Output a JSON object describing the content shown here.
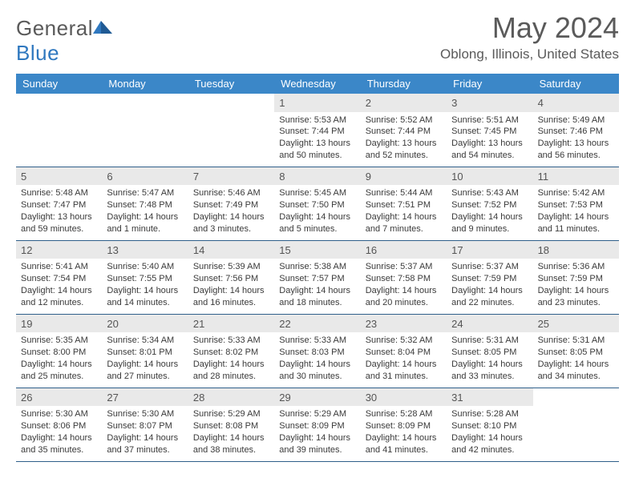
{
  "brand": {
    "name_a": "General",
    "name_b": "Blue"
  },
  "title": "May 2024",
  "location": "Oblong, Illinois, United States",
  "colors": {
    "header_bg": "#3b87c8",
    "header_text": "#ffffff",
    "daynum_bg": "#e9e9e9",
    "border": "#2f5f8a",
    "text": "#3a3a3a",
    "title_text": "#5a5a5a"
  },
  "weekdays": [
    "Sunday",
    "Monday",
    "Tuesday",
    "Wednesday",
    "Thursday",
    "Friday",
    "Saturday"
  ],
  "weeks": [
    [
      null,
      null,
      null,
      {
        "n": "1",
        "sr": "5:53 AM",
        "ss": "7:44 PM",
        "dl": "13 hours and 50 minutes."
      },
      {
        "n": "2",
        "sr": "5:52 AM",
        "ss": "7:44 PM",
        "dl": "13 hours and 52 minutes."
      },
      {
        "n": "3",
        "sr": "5:51 AM",
        "ss": "7:45 PM",
        "dl": "13 hours and 54 minutes."
      },
      {
        "n": "4",
        "sr": "5:49 AM",
        "ss": "7:46 PM",
        "dl": "13 hours and 56 minutes."
      }
    ],
    [
      {
        "n": "5",
        "sr": "5:48 AM",
        "ss": "7:47 PM",
        "dl": "13 hours and 59 minutes."
      },
      {
        "n": "6",
        "sr": "5:47 AM",
        "ss": "7:48 PM",
        "dl": "14 hours and 1 minute."
      },
      {
        "n": "7",
        "sr": "5:46 AM",
        "ss": "7:49 PM",
        "dl": "14 hours and 3 minutes."
      },
      {
        "n": "8",
        "sr": "5:45 AM",
        "ss": "7:50 PM",
        "dl": "14 hours and 5 minutes."
      },
      {
        "n": "9",
        "sr": "5:44 AM",
        "ss": "7:51 PM",
        "dl": "14 hours and 7 minutes."
      },
      {
        "n": "10",
        "sr": "5:43 AM",
        "ss": "7:52 PM",
        "dl": "14 hours and 9 minutes."
      },
      {
        "n": "11",
        "sr": "5:42 AM",
        "ss": "7:53 PM",
        "dl": "14 hours and 11 minutes."
      }
    ],
    [
      {
        "n": "12",
        "sr": "5:41 AM",
        "ss": "7:54 PM",
        "dl": "14 hours and 12 minutes."
      },
      {
        "n": "13",
        "sr": "5:40 AM",
        "ss": "7:55 PM",
        "dl": "14 hours and 14 minutes."
      },
      {
        "n": "14",
        "sr": "5:39 AM",
        "ss": "7:56 PM",
        "dl": "14 hours and 16 minutes."
      },
      {
        "n": "15",
        "sr": "5:38 AM",
        "ss": "7:57 PM",
        "dl": "14 hours and 18 minutes."
      },
      {
        "n": "16",
        "sr": "5:37 AM",
        "ss": "7:58 PM",
        "dl": "14 hours and 20 minutes."
      },
      {
        "n": "17",
        "sr": "5:37 AM",
        "ss": "7:59 PM",
        "dl": "14 hours and 22 minutes."
      },
      {
        "n": "18",
        "sr": "5:36 AM",
        "ss": "7:59 PM",
        "dl": "14 hours and 23 minutes."
      }
    ],
    [
      {
        "n": "19",
        "sr": "5:35 AM",
        "ss": "8:00 PM",
        "dl": "14 hours and 25 minutes."
      },
      {
        "n": "20",
        "sr": "5:34 AM",
        "ss": "8:01 PM",
        "dl": "14 hours and 27 minutes."
      },
      {
        "n": "21",
        "sr": "5:33 AM",
        "ss": "8:02 PM",
        "dl": "14 hours and 28 minutes."
      },
      {
        "n": "22",
        "sr": "5:33 AM",
        "ss": "8:03 PM",
        "dl": "14 hours and 30 minutes."
      },
      {
        "n": "23",
        "sr": "5:32 AM",
        "ss": "8:04 PM",
        "dl": "14 hours and 31 minutes."
      },
      {
        "n": "24",
        "sr": "5:31 AM",
        "ss": "8:05 PM",
        "dl": "14 hours and 33 minutes."
      },
      {
        "n": "25",
        "sr": "5:31 AM",
        "ss": "8:05 PM",
        "dl": "14 hours and 34 minutes."
      }
    ],
    [
      {
        "n": "26",
        "sr": "5:30 AM",
        "ss": "8:06 PM",
        "dl": "14 hours and 35 minutes."
      },
      {
        "n": "27",
        "sr": "5:30 AM",
        "ss": "8:07 PM",
        "dl": "14 hours and 37 minutes."
      },
      {
        "n": "28",
        "sr": "5:29 AM",
        "ss": "8:08 PM",
        "dl": "14 hours and 38 minutes."
      },
      {
        "n": "29",
        "sr": "5:29 AM",
        "ss": "8:09 PM",
        "dl": "14 hours and 39 minutes."
      },
      {
        "n": "30",
        "sr": "5:28 AM",
        "ss": "8:09 PM",
        "dl": "14 hours and 41 minutes."
      },
      {
        "n": "31",
        "sr": "5:28 AM",
        "ss": "8:10 PM",
        "dl": "14 hours and 42 minutes."
      },
      null
    ]
  ],
  "labels": {
    "sunrise": "Sunrise:",
    "sunset": "Sunset:",
    "daylight": "Daylight:"
  }
}
